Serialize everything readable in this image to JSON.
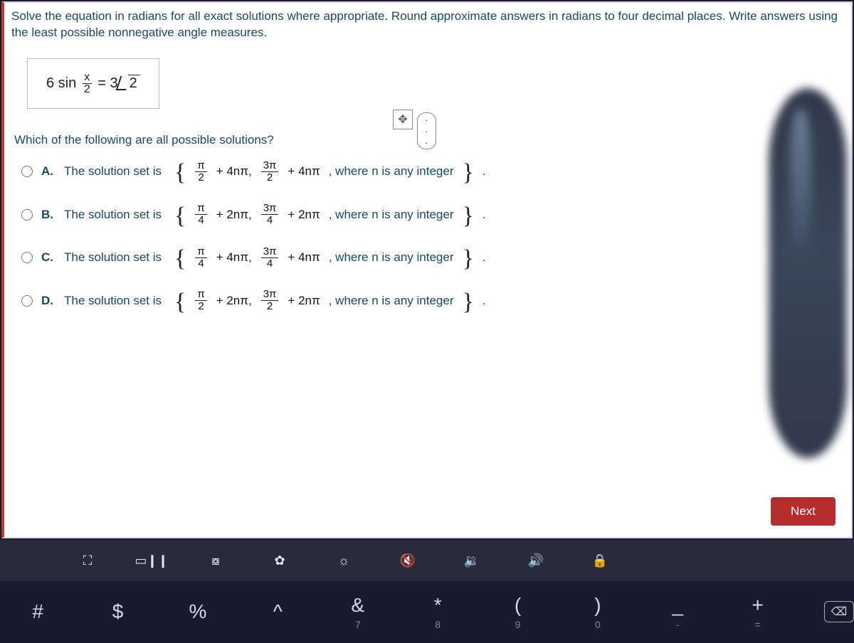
{
  "question": {
    "prompt": "Solve the equation in radians for all exact solutions where appropriate. Round approximate answers in radians to four decimal places. Write answers using the least possible nonnegative angle measures.",
    "equation": {
      "left_coeff": "6 sin",
      "arg_num": "x",
      "arg_den": "2",
      "equals": "=",
      "rhs_coeff": "3",
      "radicand": "2"
    },
    "sub_prompt": "Which of the following are all possible solutions?",
    "lead_text": "The solution set is",
    "tail_text": ", where n is any integer",
    "choices": [
      {
        "letter": "A.",
        "t1n": "π",
        "t1d": "2",
        "p1": "+ 4nπ,",
        "t2n": "3π",
        "t2d": "2",
        "p2": "+ 4nπ"
      },
      {
        "letter": "B.",
        "t1n": "π",
        "t1d": "4",
        "p1": "+ 2nπ,",
        "t2n": "3π",
        "t2d": "4",
        "p2": "+ 2nπ"
      },
      {
        "letter": "C.",
        "t1n": "π",
        "t1d": "4",
        "p1": "+ 4nπ,",
        "t2n": "3π",
        "t2d": "4",
        "p2": "+ 4nπ"
      },
      {
        "letter": "D.",
        "t1n": "π",
        "t1d": "2",
        "p1": "+ 2nπ,",
        "t2n": "3π",
        "t2d": "2",
        "p2": "+ 2nπ"
      }
    ],
    "dots_label": "· · ·",
    "next_label": "Next"
  },
  "osbar1": {
    "icons": [
      "⛶",
      "▭❙❙",
      "⧇",
      "✿",
      "☼",
      "🔇",
      "🔉",
      "🔊",
      "🔒"
    ]
  },
  "osbar2": [
    {
      "sym": "#",
      "sub": ""
    },
    {
      "sym": "$",
      "sub": ""
    },
    {
      "sym": "%",
      "sub": ""
    },
    {
      "sym": "^",
      "sub": ""
    },
    {
      "sym": "&",
      "sub": "7"
    },
    {
      "sym": "*",
      "sub": "8"
    },
    {
      "sym": "(",
      "sub": "9"
    },
    {
      "sym": ")",
      "sub": "0"
    },
    {
      "sym": "_",
      "sub": "-"
    },
    {
      "sym": "+",
      "sub": "="
    }
  ],
  "colors": {
    "prompt": "#1a4a5a",
    "accent_red": "#b52d2d",
    "left_border": "#c0392b",
    "panel_border": "#d8d0e8",
    "bg_dark": "#1a1a2e",
    "bar1": "#2a2a3a"
  }
}
